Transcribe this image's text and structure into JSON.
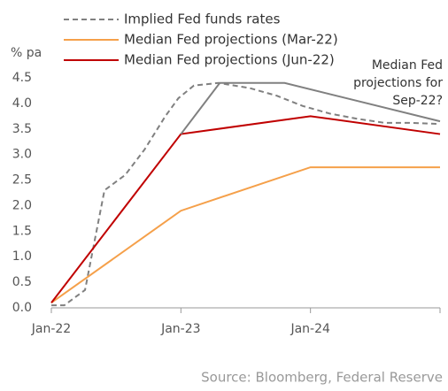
{
  "chart_data": {
    "type": "line",
    "y_label": "% pa",
    "source": "Source: Bloomberg, Federal Reserve",
    "annotation": [
      "Median Fed",
      "projections for",
      "Sep-22?"
    ],
    "xlim": [
      2022,
      2025
    ],
    "xticks": [
      {
        "value": 2022,
        "label": "Jan-22"
      },
      {
        "value": 2023,
        "label": "Jan-23"
      },
      {
        "value": 2024,
        "label": "Jan-24"
      }
    ],
    "ylim": [
      0,
      4.5
    ],
    "yticks": [
      {
        "value": 0,
        "label": "0.0"
      },
      0.5,
      {
        "value": 1,
        "label": "1.0"
      },
      1.5,
      {
        "value": 2,
        "label": "2.0"
      },
      2.5,
      {
        "value": 3,
        "label": "3.0"
      },
      3.5,
      {
        "value": 4,
        "label": "4.0"
      },
      4.5
    ],
    "series": [
      {
        "name": "Implied Fed funds rates",
        "color": "#808080",
        "dashed": true,
        "x": [
          2022,
          2022.1,
          2022.26,
          2022.41,
          2022.57,
          2022.72,
          2022.88,
          2022.98,
          2023.1,
          2023.29,
          2023.53,
          2023.74,
          2023.94,
          2024.15,
          2024.36,
          2024.57,
          2024.77,
          2024.98
        ],
        "values": [
          0.05,
          0.05,
          0.35,
          2.3,
          2.6,
          3.1,
          3.75,
          4.1,
          4.35,
          4.4,
          4.3,
          4.15,
          3.95,
          3.8,
          3.7,
          3.62,
          3.62,
          3.6
        ]
      },
      {
        "name": "Median Fed projections (Mar-22)",
        "color": "#f5a04a",
        "x": [
          2022,
          2023,
          2024,
          2025
        ],
        "values": [
          0.1,
          1.9,
          2.75,
          2.75
        ]
      },
      {
        "name": "Median Fed projections (Jun-22)",
        "color": "#c00000",
        "x": [
          2022,
          2023,
          2024,
          2025
        ],
        "values": [
          0.1,
          3.4,
          3.75,
          3.4
        ]
      },
      {
        "color": "#808080",
        "x": [
          2023,
          2023.3,
          2023.8,
          2025
        ],
        "values": [
          3.4,
          4.4,
          4.4,
          3.65
        ]
      }
    ]
  }
}
